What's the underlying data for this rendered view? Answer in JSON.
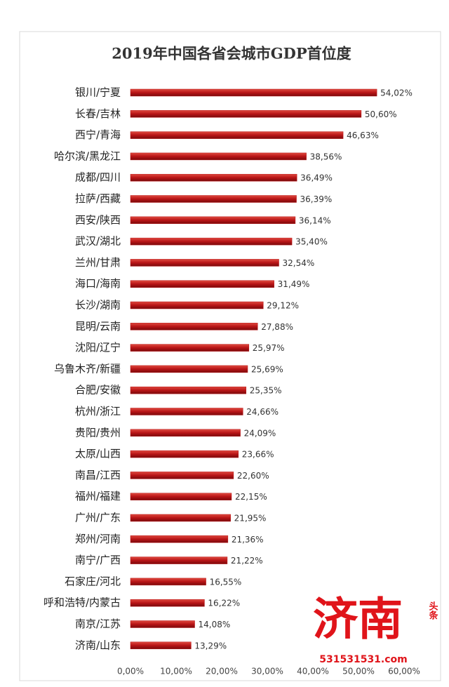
{
  "chart_data": {
    "type": "barh",
    "title": "2019年中国各省会城市GDP首位度",
    "categories": [
      "银川/宁夏",
      "长春/吉林",
      "西宁/青海",
      "哈尔滨/黑龙江",
      "成都/四川",
      "拉萨/西藏",
      "西安/陕西",
      "武汉/湖北",
      "兰州/甘肃",
      "海口/海南",
      "长沙/湖南",
      "昆明/云南",
      "沈阳/辽宁",
      "乌鲁木齐/新疆",
      "合肥/安徽",
      "杭州/浙江",
      "贵阳/贵州",
      "太原/山西",
      "南昌/江西",
      "福州/福建",
      "广州/广东",
      "郑州/河南",
      "南宁/广西",
      "石家庄/河北",
      "呼和浩特/内蒙古",
      "南京/江苏",
      "济南/山东"
    ],
    "values": [
      54.02,
      50.6,
      46.63,
      38.56,
      36.49,
      36.39,
      36.14,
      35.4,
      32.54,
      31.49,
      29.12,
      27.88,
      25.97,
      25.69,
      25.35,
      24.66,
      24.09,
      23.66,
      22.6,
      22.15,
      21.95,
      21.36,
      21.22,
      16.55,
      16.22,
      14.08,
      13.29
    ],
    "value_labels": [
      "54,02%",
      "50,60%",
      "46,63%",
      "38,56%",
      "36,49%",
      "36,39%",
      "36,14%",
      "35,40%",
      "32,54%",
      "31,49%",
      "29,12%",
      "27,88%",
      "25,97%",
      "25,69%",
      "25,35%",
      "24,66%",
      "24,09%",
      "23,66%",
      "22,60%",
      "22,15%",
      "21,95%",
      "21,36%",
      "21,22%",
      "16,55%",
      "16,22%",
      "14,08%",
      "13,29%"
    ],
    "color": "#b81416",
    "xlim": [
      0,
      60
    ],
    "xticks": [
      {
        "value": 0,
        "label": "0,00%"
      },
      {
        "value": 10,
        "label": "10,00%"
      },
      {
        "value": 20,
        "label": "20,00%"
      },
      {
        "value": 30,
        "label": "30,00%"
      },
      {
        "value": 40,
        "label": "40,00%"
      },
      {
        "value": 50,
        "label": "50,00%"
      },
      {
        "value": 60,
        "label": "60,00%"
      }
    ],
    "grid": false
  },
  "watermark": {
    "text": "济南",
    "site": "531531531.com",
    "badge": "头条"
  }
}
